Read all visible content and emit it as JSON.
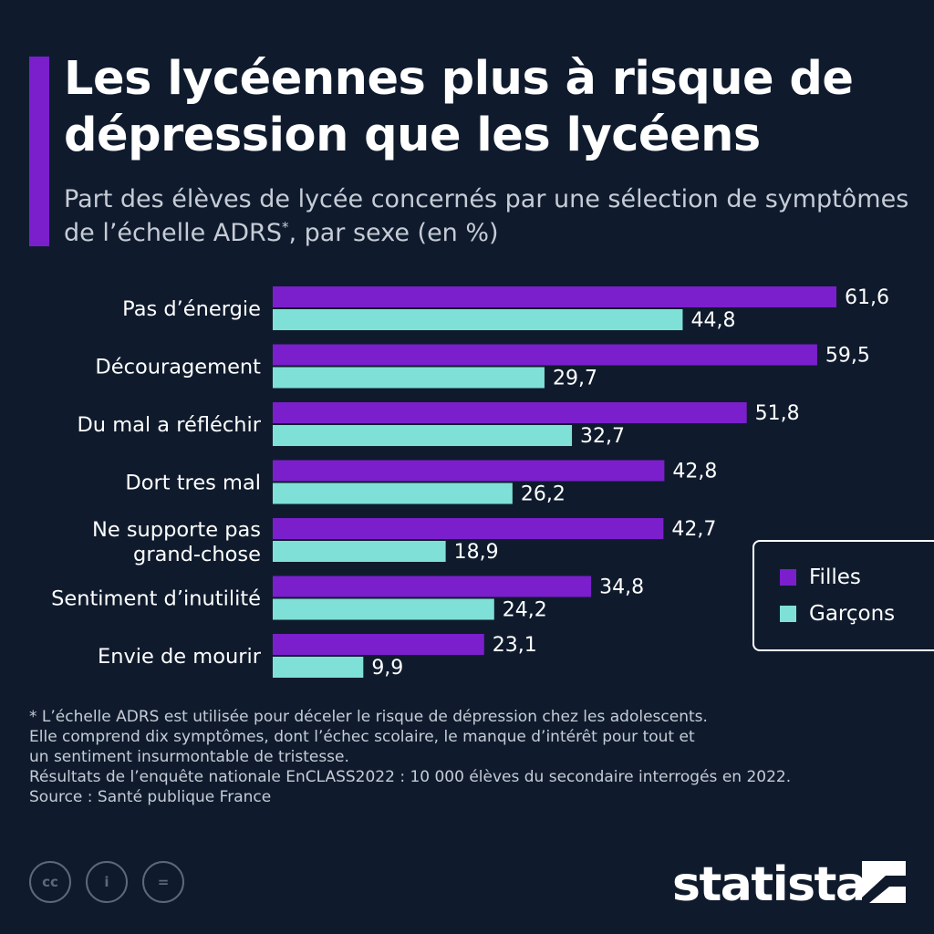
{
  "header": {
    "title": "Les lycéennes plus à risque de dépression que les lycéens",
    "subtitle_a": "Part des élèves de lycée concernés par une sélection de symptômes de l’échelle ADRS",
    "subtitle_sup": "*",
    "subtitle_b": ", par sexe (en %)"
  },
  "colors": {
    "background": "#0f1b2d",
    "accent": "#7b1fcc",
    "filles": "#7b1fcc",
    "garcons": "#7fe0d8"
  },
  "chart_data": {
    "type": "bar",
    "orientation": "horizontal",
    "categories": [
      [
        "Pas d’énergie"
      ],
      [
        "Découragement"
      ],
      [
        "Du mal a réfléchir"
      ],
      [
        "Dort tres mal"
      ],
      [
        "Ne supporte pas",
        "grand-chose"
      ],
      [
        "Sentiment d’inutilité"
      ],
      [
        "Envie de mourir"
      ]
    ],
    "series": [
      {
        "name": "Filles",
        "values": [
          61.6,
          59.5,
          51.8,
          42.8,
          42.7,
          34.8,
          23.1
        ],
        "labels": [
          "61,6",
          "59,5",
          "51,8",
          "42,8",
          "42,7",
          "34,8",
          "23,1"
        ],
        "color": "#7b1fcc"
      },
      {
        "name": "Garçons",
        "values": [
          44.8,
          29.7,
          32.7,
          26.2,
          18.9,
          24.2,
          9.9
        ],
        "labels": [
          "44,8",
          "29,7",
          "32,7",
          "26,2",
          "18,9",
          "24,2",
          "9,9"
        ],
        "color": "#7fe0d8"
      }
    ],
    "xlim": [
      0,
      61.6
    ],
    "grid": false,
    "legend": "right"
  },
  "legend": {
    "filles": "Filles",
    "garcons": "Garçons"
  },
  "notes": {
    "line1": "* L’échelle ADRS est utilisée pour déceler le risque de dépression chez les adolescents.",
    "line2": "Elle comprend dix symptômes, dont l’échec scolaire, le manque d’intérêt pour tout et",
    "line3": "un sentiment insurmontable de tristesse.",
    "line4": "Résultats de l’enquête nationale EnCLASS2022 : 10 000 élèves du secondaire interrogés en 2022.",
    "source": "Source : Santé publique France"
  },
  "footer": {
    "cc_label": "cc",
    "by_label": "i",
    "nd_label": "=",
    "logo": "statista"
  }
}
